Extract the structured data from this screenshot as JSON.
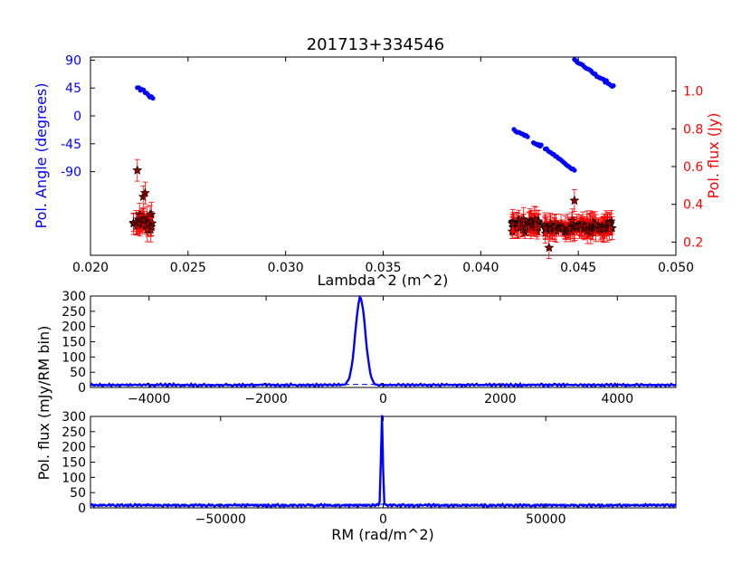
{
  "figure": {
    "title": "201713+334546",
    "shared_ylabel": "Pol. flux (mJy/RM bin)"
  },
  "colors": {
    "angle": "#0000ff",
    "flux": "#ff0000",
    "star_fill": "#8b0000",
    "axis": "#000000"
  },
  "chart_data": [
    {
      "type": "scatter",
      "title": "201713+334546",
      "xlabel": "Lambda^2 (m^2)",
      "ylabel": "Pol. Angle (degrees)",
      "y2label": "Pol. flux (Jy)",
      "xlim": [
        0.02,
        0.05
      ],
      "ylim": [
        -225,
        95
      ],
      "y2lim": [
        0.13,
        1.18
      ],
      "xticks": [
        "0.020",
        "0.025",
        "0.030",
        "0.035",
        "0.040",
        "0.045",
        "0.050"
      ],
      "yticks": [
        "90",
        "45",
        "0",
        "-45",
        "-90"
      ],
      "y2ticks": [
        "1.0",
        "0.8",
        "0.6",
        "0.4",
        "0.2"
      ],
      "series": [
        {
          "marker": "dot",
          "axis": "left",
          "clusters": [
            {
              "x": [
                0.0224,
                0.0232
              ],
              "y": [
                47,
                28
              ]
            },
            {
              "x": [
                0.0417,
                0.0424
              ],
              "y": [
                -23,
                -33
              ]
            },
            {
              "x": [
                0.0427,
                0.0431
              ],
              "y": [
                -44,
                -48
              ]
            },
            {
              "x": [
                0.0433,
                0.0448
              ],
              "y": [
                -53,
                -88
              ]
            },
            {
              "x": [
                0.0448,
                0.0468
              ],
              "y": [
                90,
                47
              ]
            }
          ]
        },
        {
          "marker": "star",
          "axis": "right",
          "clusters": [
            {
              "x": [
                0.0222,
                0.0232
              ],
              "y": [
                0.3,
                0.06
              ]
            },
            {
              "x": [
                0.0416,
                0.043
              ],
              "y": [
                0.29,
                0.05
              ]
            },
            {
              "x": [
                0.0432,
                0.0468
              ],
              "y": [
                0.28,
                0.04
              ]
            }
          ],
          "outliers": [
            [
              0.0224,
              0.58
            ],
            [
              0.0227,
              0.44
            ],
            [
              0.0228,
              0.46
            ],
            [
              0.0448,
              0.42
            ],
            [
              0.0435,
              0.17
            ]
          ]
        }
      ]
    },
    {
      "type": "line",
      "xlim": [
        -5000,
        5000
      ],
      "ylim": [
        0,
        300
      ],
      "xticks": [
        "−4000",
        "−2000",
        "0",
        "2000",
        "4000"
      ],
      "yticks": [
        "300",
        "250",
        "200",
        "150",
        "100",
        "50",
        "0"
      ],
      "peak": {
        "x": -390,
        "y": 287,
        "width": 85
      },
      "baseline": 8,
      "noise": 4,
      "dashed_level": 10
    },
    {
      "type": "line",
      "xlabel": "RM (rad/m^2)",
      "xlim": [
        -90000,
        90000
      ],
      "ylim": [
        0,
        300
      ],
      "xticks": [
        "−50000",
        "0",
        "50000"
      ],
      "yticks": [
        "300",
        "250",
        "200",
        "150",
        "100",
        "50",
        "0"
      ],
      "peak": {
        "x": -390,
        "y": 295,
        "width": 280
      },
      "baseline": 8,
      "noise": 4,
      "dashed_level": 12
    }
  ]
}
